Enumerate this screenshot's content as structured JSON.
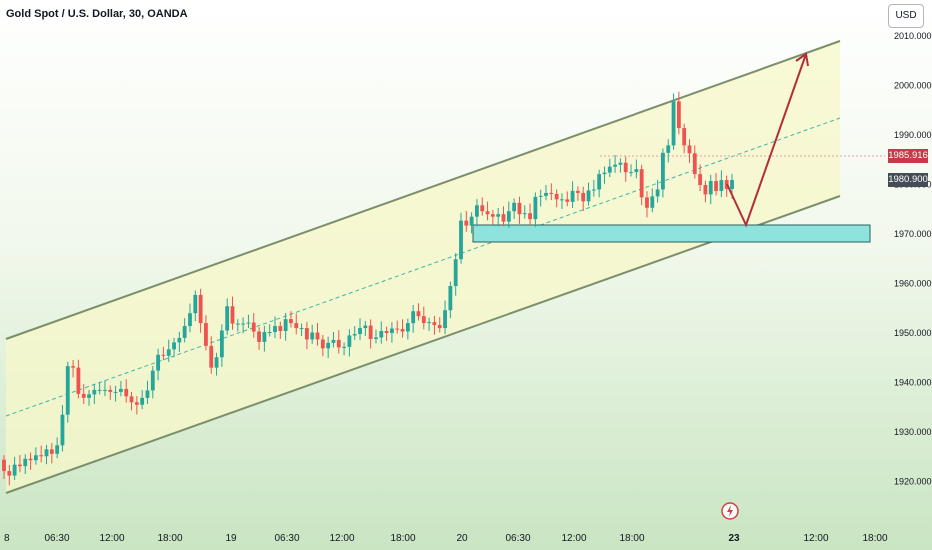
{
  "header": {
    "title": "Gold Spot / U.S. Dollar, 30, OANDA",
    "currency_button": "USD"
  },
  "price_tags": {
    "red": "1985.916",
    "gray": "1980.900"
  },
  "colors": {
    "up": "#26a69a",
    "down": "#ef5350",
    "channel": "#7a8f6a",
    "channel_fill": "#f7f7c8",
    "zone": "#8fe3dd",
    "arrow": "#b22d3a",
    "midline": "#3cb9a5"
  },
  "events_icon": "lightning-icon",
  "chart_data": {
    "type": "candlestick",
    "title": "Gold Spot / U.S. Dollar, 30, OANDA",
    "ylim": [
      1915,
      2010
    ],
    "y_ticks": [
      "2010.000",
      "2000.000",
      "1990.000",
      "1980.000",
      "1970.000",
      "1960.000",
      "1950.000",
      "1940.000",
      "1930.000",
      "1920.000"
    ],
    "x_ticks": [
      "8",
      "06:30",
      "12:00",
      "18:00",
      "19",
      "06:30",
      "12:00",
      "18:00",
      "20",
      "06:30",
      "12:00",
      "18:00",
      "23",
      "12:00",
      "18:00"
    ],
    "candles": [
      [
        1924.4,
        1922.1
      ],
      [
        1922.1,
        1921.2
      ],
      [
        1921.2,
        1923.4
      ],
      [
        1923.4,
        1923.1
      ],
      [
        1923.1,
        1924.6
      ],
      [
        1924.6,
        1924.3
      ],
      [
        1924.3,
        1925.3
      ],
      [
        1925.3,
        1925.1
      ],
      [
        1925.1,
        1926.5
      ],
      [
        1926.5,
        1925.6
      ],
      [
        1925.6,
        1927.3
      ],
      [
        1927.3,
        1933.5
      ],
      [
        1933.5,
        1943.3
      ],
      [
        1943.3,
        1943.0
      ],
      [
        1943.0,
        1937.7
      ],
      [
        1937.7,
        1936.9
      ],
      [
        1936.9,
        1937.6
      ],
      [
        1937.6,
        1938.5
      ],
      [
        1938.5,
        1938.5
      ],
      [
        1938.5,
        1938.5
      ],
      [
        1938.5,
        1938.1
      ],
      [
        1938.1,
        1938.1
      ],
      [
        1938.1,
        1938.7
      ],
      [
        1938.7,
        1937.2
      ],
      [
        1937.2,
        1936.0
      ],
      [
        1936.0,
        1935.5
      ],
      [
        1935.5,
        1936.9
      ],
      [
        1936.9,
        1938.4
      ],
      [
        1938.4,
        1942.4
      ],
      [
        1942.4,
        1945.6
      ],
      [
        1945.6,
        1945.4
      ],
      [
        1945.4,
        1946.7
      ],
      [
        1946.7,
        1948.1
      ],
      [
        1948.1,
        1949.0
      ],
      [
        1949.0,
        1951.4
      ],
      [
        1951.4,
        1954.0
      ],
      [
        1954.0,
        1957.7
      ],
      [
        1957.7,
        1952.0
      ],
      [
        1952.0,
        1947.4
      ],
      [
        1947.4,
        1943.0
      ],
      [
        1943.0,
        1945.1
      ],
      [
        1945.1,
        1950.5
      ],
      [
        1950.5,
        1955.4
      ],
      [
        1955.4,
        1951.9
      ],
      [
        1951.9,
        1951.9
      ],
      [
        1951.9,
        1951.9
      ],
      [
        1951.9,
        1952.1
      ],
      [
        1952.1,
        1950.3
      ],
      [
        1950.3,
        1948.2
      ],
      [
        1948.2,
        1950.2
      ],
      [
        1950.2,
        1950.2
      ],
      [
        1950.2,
        1951.4
      ],
      [
        1951.4,
        1950.4
      ],
      [
        1950.4,
        1952.8
      ],
      [
        1952.8,
        1952.0
      ],
      [
        1952.0,
        1951.0
      ],
      [
        1951.0,
        1951.0
      ],
      [
        1951.0,
        1948.7
      ],
      [
        1948.7,
        1950.1
      ],
      [
        1950.1,
        1948.7
      ],
      [
        1948.7,
        1946.9
      ],
      [
        1946.9,
        1948.0
      ],
      [
        1948.0,
        1948.6
      ],
      [
        1948.6,
        1947.1
      ],
      [
        1947.1,
        1947.2
      ],
      [
        1947.2,
        1949.5
      ],
      [
        1949.5,
        1949.8
      ],
      [
        1949.8,
        1951.0
      ],
      [
        1951.0,
        1951.5
      ],
      [
        1951.5,
        1948.8
      ],
      [
        1948.8,
        1949.1
      ],
      [
        1949.1,
        1950.4
      ],
      [
        1950.4,
        1950.0
      ],
      [
        1950.0,
        1950.9
      ],
      [
        1950.9,
        1950.8
      ],
      [
        1950.8,
        1950.3
      ],
      [
        1950.3,
        1952.0
      ],
      [
        1952.0,
        1954.4
      ],
      [
        1954.4,
        1953.4
      ],
      [
        1953.4,
        1952.0
      ],
      [
        1952.0,
        1952.2
      ],
      [
        1952.2,
        1951.6
      ],
      [
        1951.6,
        1951.0
      ],
      [
        1951.0,
        1954.6
      ],
      [
        1954.6,
        1959.5
      ],
      [
        1959.5,
        1964.9
      ],
      [
        1964.9,
        1972.7
      ],
      [
        1972.7,
        1971.7
      ],
      [
        1971.7,
        1973.5
      ],
      [
        1973.5,
        1975.8
      ],
      [
        1975.8,
        1974.6
      ],
      [
        1974.6,
        1974.0
      ],
      [
        1974.0,
        1973.5
      ],
      [
        1973.5,
        1974.0
      ],
      [
        1974.0,
        1972.5
      ],
      [
        1972.5,
        1974.6
      ],
      [
        1974.6,
        1976.3
      ],
      [
        1976.3,
        1974.0
      ],
      [
        1974.0,
        1974.2
      ],
      [
        1974.2,
        1973.0
      ],
      [
        1973.0,
        1977.5
      ],
      [
        1977.5,
        1977.7
      ],
      [
        1977.7,
        1978.3
      ],
      [
        1978.3,
        1978.1
      ],
      [
        1978.1,
        1977.0
      ],
      [
        1977.0,
        1977.0
      ],
      [
        1977.0,
        1976.5
      ],
      [
        1976.5,
        1978.7
      ],
      [
        1978.7,
        1978.3
      ],
      [
        1978.3,
        1976.6
      ],
      [
        1976.6,
        1978.8
      ],
      [
        1978.8,
        1979.0
      ],
      [
        1979.0,
        1982.1
      ],
      [
        1982.1,
        1982.4
      ],
      [
        1982.4,
        1983.6
      ],
      [
        1983.6,
        1984.0
      ],
      [
        1984.0,
        1984.4
      ],
      [
        1984.4,
        1982.5
      ],
      [
        1982.5,
        1982.5
      ],
      [
        1982.5,
        1983.1
      ],
      [
        1983.1,
        1977.4
      ],
      [
        1977.4,
        1975.3
      ],
      [
        1975.3,
        1977.6
      ],
      [
        1977.6,
        1979.0
      ],
      [
        1979.0,
        1986.4
      ],
      [
        1986.4,
        1987.9
      ],
      [
        1987.9,
        1996.8
      ],
      [
        1996.8,
        1991.4
      ],
      [
        1991.4,
        1987.9
      ],
      [
        1987.9,
        1986.3
      ],
      [
        1986.3,
        1982.1
      ],
      [
        1982.1,
        1979.9
      ],
      [
        1979.9,
        1978.0
      ],
      [
        1978.0,
        1980.7
      ],
      [
        1980.7,
        1978.7
      ],
      [
        1978.7,
        1980.9
      ],
      [
        1980.9,
        1979.1
      ],
      [
        1979.1,
        1980.9
      ]
    ]
  }
}
